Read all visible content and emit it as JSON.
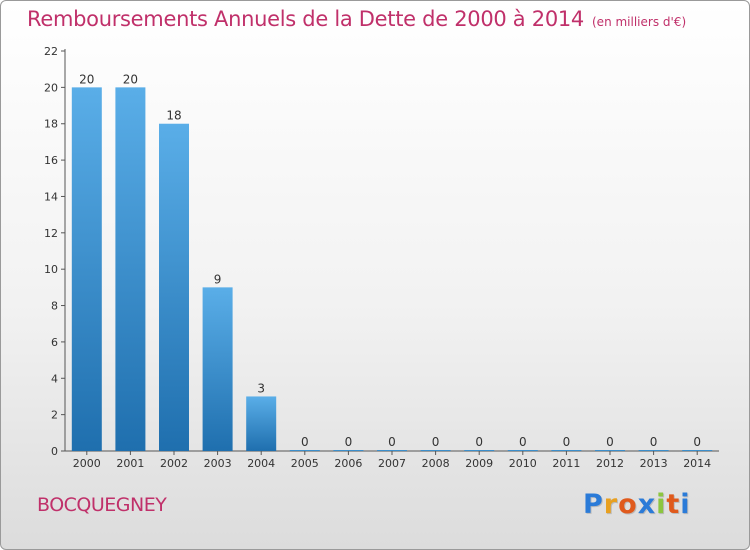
{
  "header": {
    "title": "Remboursements Annuels de la Dette de 2000 à 2014",
    "subtitle": "(en milliers d'€)"
  },
  "footer": {
    "town": "BOCQUEGNEY",
    "logo_letters": [
      "P",
      "r",
      "o",
      "x",
      "i",
      "t",
      "i"
    ],
    "logo_colors": [
      "#2b7bd8",
      "#e8a020",
      "#e05a1c",
      "#2b7bd8",
      "#8cc63f",
      "#e05a1c",
      "#2b7bd8"
    ]
  },
  "chart_data": {
    "type": "bar",
    "title": "Remboursements Annuels de la Dette de 2000 à 2014",
    "subtitle": "(en milliers d'€)",
    "xlabel": "",
    "ylabel": "",
    "categories": [
      "2000",
      "2001",
      "2002",
      "2003",
      "2004",
      "2005",
      "2006",
      "2007",
      "2008",
      "2009",
      "2010",
      "2011",
      "2012",
      "2013",
      "2014"
    ],
    "values": [
      20,
      20,
      18,
      9,
      3,
      0,
      0,
      0,
      0,
      0,
      0,
      0,
      0,
      0,
      0
    ],
    "value_labels": [
      "20",
      "20",
      "18",
      "9",
      "3",
      "0",
      "0",
      "0",
      "0",
      "0",
      "0",
      "0",
      "0",
      "0",
      "0"
    ],
    "ylim": [
      0,
      22
    ],
    "yticks": [
      "0",
      "2",
      "4",
      "6",
      "8",
      "10",
      "12",
      "14",
      "16",
      "18",
      "20",
      "22"
    ],
    "grid": false,
    "legend": "none",
    "bar_color_top": "#5aaee8",
    "bar_color_bottom": "#1f6fae"
  }
}
